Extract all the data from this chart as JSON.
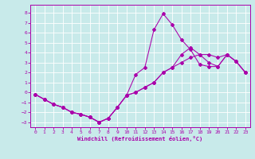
{
  "xlabel": "Windchill (Refroidissement éolien,°C)",
  "background_color": "#c8eaea",
  "line_color": "#aa00aa",
  "grid_color": "#ffffff",
  "xlim": [
    -0.5,
    23.5
  ],
  "ylim": [
    -3.5,
    8.8
  ],
  "xticks": [
    0,
    1,
    2,
    3,
    4,
    5,
    6,
    7,
    8,
    9,
    10,
    11,
    12,
    13,
    14,
    15,
    16,
    17,
    18,
    19,
    20,
    21,
    22,
    23
  ],
  "yticks": [
    -3,
    -2,
    -1,
    0,
    1,
    2,
    3,
    4,
    5,
    6,
    7,
    8
  ],
  "line1_x": [
    0,
    1,
    2,
    3,
    4,
    5,
    6,
    7,
    8,
    9,
    10,
    11,
    12,
    13,
    14,
    15,
    16,
    17,
    18,
    19,
    20,
    21,
    22,
    23
  ],
  "line1_y": [
    -0.2,
    -0.7,
    -1.2,
    -1.5,
    -2.0,
    -2.2,
    -2.5,
    -3.0,
    -2.6,
    -1.5,
    -0.3,
    0.0,
    0.5,
    1.0,
    2.0,
    2.5,
    3.0,
    3.5,
    3.8,
    3.8,
    3.5,
    3.8,
    3.1,
    2.0
  ],
  "line2_x": [
    0,
    1,
    2,
    3,
    4,
    5,
    6,
    7,
    8,
    9,
    10,
    11,
    12,
    13,
    14,
    15,
    16,
    17,
    18,
    19,
    20,
    21,
    22,
    23
  ],
  "line2_y": [
    -0.2,
    -0.7,
    -1.2,
    -1.5,
    -2.0,
    -2.2,
    -2.5,
    -3.0,
    -2.6,
    -1.5,
    -0.3,
    1.8,
    2.5,
    6.3,
    7.9,
    6.8,
    5.3,
    4.3,
    2.8,
    2.6,
    2.6,
    3.8,
    3.1,
    2.0
  ],
  "line3_x": [
    0,
    1,
    2,
    3,
    4,
    5,
    6,
    7,
    8,
    9,
    10,
    11,
    12,
    13,
    14,
    15,
    16,
    17,
    18,
    19,
    20,
    21,
    22,
    23
  ],
  "line3_y": [
    -0.2,
    -0.7,
    -1.2,
    -1.5,
    -2.0,
    -2.2,
    -2.5,
    -3.0,
    -2.6,
    -1.5,
    -0.3,
    0.0,
    0.5,
    1.0,
    2.0,
    2.5,
    3.8,
    4.5,
    3.8,
    3.0,
    2.6,
    3.8,
    3.1,
    2.0
  ]
}
